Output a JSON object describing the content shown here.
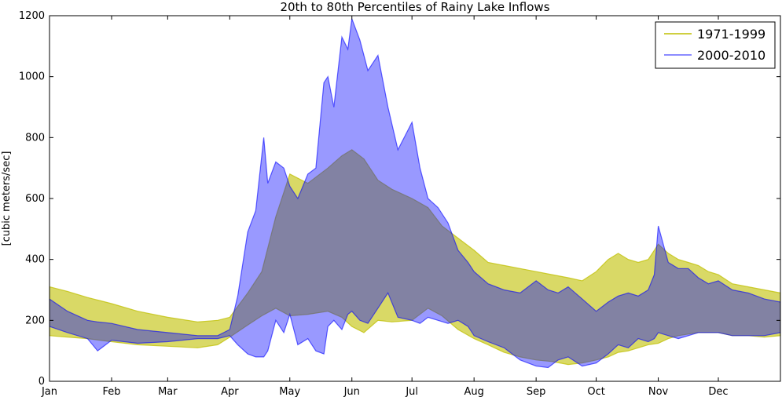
{
  "chart_data": {
    "type": "area",
    "title": "20th to 80th Percentiles of Rainy Lake Inflows",
    "xlabel": "",
    "ylabel": "[cubic meters/sec]",
    "ylim": [
      0,
      1200
    ],
    "yticks": [
      0,
      200,
      400,
      600,
      800,
      1000,
      1200
    ],
    "xlim": [
      1,
      366
    ],
    "xticks": [
      {
        "label": "Jan",
        "day": 1
      },
      {
        "label": "Feb",
        "day": 32
      },
      {
        "label": "Mar",
        "day": 60
      },
      {
        "label": "Apr",
        "day": 91
      },
      {
        "label": "May",
        "day": 121
      },
      {
        "label": "Jun",
        "day": 152
      },
      {
        "label": "Jul",
        "day": 182
      },
      {
        "label": "Aug",
        "day": 213
      },
      {
        "label": "Sep",
        "day": 244
      },
      {
        "label": "Oct",
        "day": 274
      },
      {
        "label": "Nov",
        "day": 305
      },
      {
        "label": "Dec",
        "day": 335
      }
    ],
    "legend_position": "top-right",
    "grid": false,
    "series": [
      {
        "name": "1971-1999",
        "color": "#bfbf00",
        "x": [
          1,
          10,
          20,
          32,
          45,
          60,
          75,
          85,
          91,
          100,
          107,
          114,
          121,
          130,
          140,
          147,
          152,
          158,
          165,
          172,
          182,
          190,
          197,
          205,
          213,
          220,
          228,
          236,
          244,
          252,
          260,
          267,
          274,
          280,
          285,
          290,
          295,
          300,
          305,
          310,
          315,
          320,
          325,
          330,
          335,
          342,
          350,
          358,
          366
        ],
        "low": [
          150,
          145,
          140,
          130,
          120,
          115,
          110,
          120,
          145,
          185,
          215,
          240,
          215,
          220,
          230,
          210,
          180,
          160,
          200,
          195,
          200,
          240,
          215,
          170,
          140,
          120,
          95,
          80,
          70,
          65,
          55,
          60,
          70,
          80,
          95,
          100,
          110,
          120,
          125,
          140,
          150,
          155,
          160,
          160,
          160,
          150,
          150,
          145,
          150
        ],
        "high": [
          310,
          295,
          275,
          255,
          230,
          210,
          195,
          200,
          210,
          290,
          360,
          540,
          680,
          650,
          700,
          740,
          760,
          730,
          660,
          630,
          600,
          570,
          510,
          470,
          430,
          390,
          380,
          370,
          360,
          350,
          340,
          330,
          360,
          400,
          420,
          400,
          390,
          400,
          450,
          420,
          400,
          390,
          380,
          360,
          350,
          320,
          310,
          300,
          290
        ]
      },
      {
        "name": "2000-2010",
        "color": "#0000ff",
        "x": [
          1,
          10,
          20,
          25,
          32,
          45,
          60,
          75,
          85,
          91,
          95,
          100,
          104,
          108,
          110,
          114,
          118,
          121,
          125,
          130,
          134,
          138,
          140,
          143,
          147,
          150,
          152,
          156,
          160,
          165,
          170,
          175,
          182,
          186,
          190,
          195,
          200,
          205,
          210,
          213,
          220,
          228,
          236,
          244,
          250,
          255,
          260,
          267,
          274,
          280,
          285,
          290,
          295,
          300,
          303,
          305,
          310,
          315,
          320,
          325,
          330,
          335,
          342,
          350,
          358,
          366
        ],
        "low": [
          180,
          160,
          140,
          100,
          135,
          125,
          130,
          140,
          140,
          150,
          120,
          90,
          80,
          80,
          100,
          200,
          160,
          220,
          120,
          140,
          100,
          90,
          180,
          200,
          170,
          220,
          230,
          200,
          190,
          240,
          290,
          210,
          200,
          190,
          210,
          200,
          190,
          200,
          180,
          150,
          130,
          110,
          70,
          50,
          45,
          70,
          80,
          50,
          60,
          90,
          120,
          110,
          140,
          130,
          140,
          160,
          150,
          140,
          150,
          160,
          160,
          160,
          150,
          150,
          150,
          160
        ],
        "high": [
          270,
          230,
          200,
          195,
          190,
          170,
          160,
          150,
          150,
          170,
          280,
          490,
          560,
          800,
          650,
          720,
          700,
          640,
          600,
          680,
          700,
          980,
          1000,
          900,
          1130,
          1090,
          1190,
          1120,
          1020,
          1070,
          900,
          760,
          850,
          700,
          600,
          570,
          520,
          430,
          390,
          360,
          320,
          300,
          290,
          330,
          300,
          290,
          310,
          270,
          230,
          260,
          280,
          290,
          280,
          300,
          350,
          510,
          390,
          370,
          370,
          340,
          320,
          330,
          300,
          290,
          270,
          260
        ]
      }
    ]
  }
}
